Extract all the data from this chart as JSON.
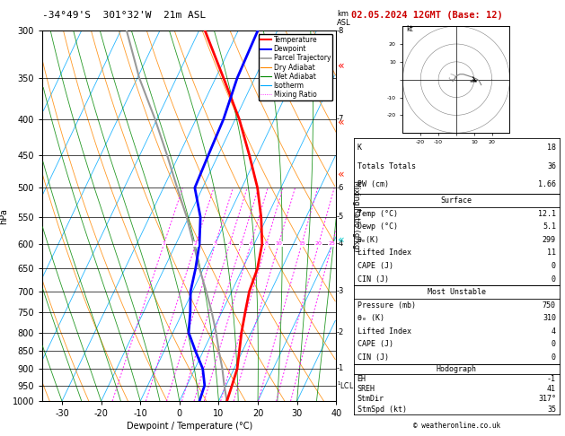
{
  "title_left": "-34°49'S  301°32'W  21m ASL",
  "title_right": "02.05.2024 12GMT (Base: 12)",
  "xlabel": "Dewpoint / Temperature (°C)",
  "ylabel_left": "hPa",
  "pressure_levels": [
    300,
    350,
    400,
    450,
    500,
    550,
    600,
    650,
    700,
    750,
    800,
    850,
    900,
    950,
    1000
  ],
  "xlim": [
    -35,
    40
  ],
  "skew": 45,
  "temp_color": "#ff0000",
  "dewp_color": "#0000ff",
  "parcel_color": "#999999",
  "dry_adiabat_color": "#ff8800",
  "wet_adiabat_color": "#008800",
  "isotherm_color": "#00aaff",
  "mixing_ratio_color": "#ff00ff",
  "mixing_ratio_values": [
    1,
    2,
    3,
    4,
    5,
    6,
    8,
    10,
    15,
    20,
    25
  ],
  "km_labels": {
    "300": 8,
    "400": 7,
    "500": 6,
    "550": 5,
    "600": 4,
    "700": 3,
    "800": 2,
    "900": 1
  },
  "stats": {
    "K": 18,
    "Totals Totals": 36,
    "PW (cm)": 1.66,
    "Surface_Temp": 12.1,
    "Surface_Dewp": 5.1,
    "Surface_thetae": 299,
    "Surface_LI": 11,
    "Surface_CAPE": 0,
    "Surface_CIN": 0,
    "MU_Pressure": 750,
    "MU_thetae": 310,
    "MU_LI": 4,
    "MU_CAPE": 0,
    "MU_CIN": 0,
    "EH": -1,
    "SREH": 41,
    "StmDir": 317,
    "StmSpd": 35
  },
  "temp_profile": {
    "pressure": [
      1000,
      950,
      900,
      850,
      800,
      750,
      700,
      650,
      600,
      550,
      500,
      450,
      400,
      350,
      300
    ],
    "temp": [
      12.1,
      11.5,
      10.8,
      9.2,
      7.5,
      6.0,
      4.5,
      3.8,
      2.0,
      -1.5,
      -6.0,
      -12.0,
      -19.0,
      -28.0,
      -38.5
    ]
  },
  "dewp_profile": {
    "pressure": [
      1000,
      950,
      900,
      850,
      800,
      750,
      700,
      650,
      600,
      550,
      500,
      450,
      400,
      350,
      300
    ],
    "dewp": [
      5.1,
      4.5,
      2.0,
      -2.0,
      -6.0,
      -8.0,
      -10.5,
      -12.0,
      -14.0,
      -17.0,
      -22.0,
      -22.5,
      -23.0,
      -24.5,
      -25.0
    ]
  },
  "parcel_profile": {
    "pressure": [
      1000,
      950,
      900,
      850,
      800,
      750,
      700,
      650,
      600,
      550,
      500,
      450,
      400,
      350,
      300
    ],
    "temp": [
      12.1,
      9.5,
      7.0,
      4.0,
      1.0,
      -2.5,
      -6.5,
      -11.0,
      -15.5,
      -20.5,
      -26.5,
      -33.0,
      -40.5,
      -49.5,
      -58.5
    ]
  },
  "background_color": "#ffffff"
}
